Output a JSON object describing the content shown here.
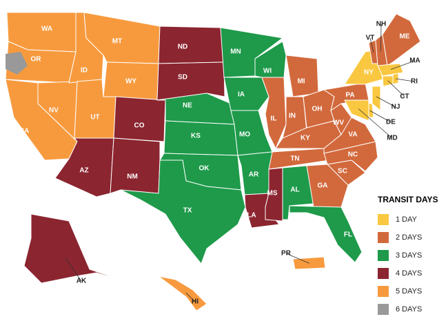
{
  "legend": {
    "title": "TRANSIT DAYS",
    "items": [
      {
        "label": "1 DAY",
        "color": "#f9c840"
      },
      {
        "label": "2 DAYS",
        "color": "#d2693c"
      },
      {
        "label": "3 DAYS",
        "color": "#1e9a4a"
      },
      {
        "label": "4 DAYS",
        "color": "#8b2530"
      },
      {
        "label": "5 DAYS",
        "color": "#f79a3e"
      },
      {
        "label": "6 DAYS",
        "color": "#999999"
      }
    ]
  },
  "states": [
    {
      "label": "WA",
      "color": "#f79a3e"
    },
    {
      "label": "OR",
      "color": "#f79a3e"
    },
    {
      "label": "CA",
      "color": "#f79a3e"
    },
    {
      "label": "NV",
      "color": "#f79a3e"
    },
    {
      "label": "ID",
      "color": "#f79a3e"
    },
    {
      "label": "MT",
      "color": "#f79a3e"
    },
    {
      "label": "WY",
      "color": "#f79a3e"
    },
    {
      "label": "UT",
      "color": "#f79a3e"
    },
    {
      "label": "AZ",
      "color": "#8b2530"
    },
    {
      "label": "CO",
      "color": "#8b2530"
    },
    {
      "label": "NM",
      "color": "#8b2530"
    },
    {
      "label": "ND",
      "color": "#8b2530"
    },
    {
      "label": "SD",
      "color": "#8b2530"
    },
    {
      "label": "NE",
      "color": "#1e9a4a"
    },
    {
      "label": "KS",
      "color": "#1e9a4a"
    },
    {
      "label": "OK",
      "color": "#1e9a4a"
    },
    {
      "label": "TX",
      "color": "#1e9a4a"
    },
    {
      "label": "MN",
      "color": "#1e9a4a"
    },
    {
      "label": "IA",
      "color": "#1e9a4a"
    },
    {
      "label": "MO",
      "color": "#1e9a4a"
    },
    {
      "label": "AR",
      "color": "#1e9a4a"
    },
    {
      "label": "LA",
      "color": "#8b2530"
    },
    {
      "label": "WI",
      "color": "#1e9a4a"
    },
    {
      "label": "IL",
      "color": "#d2693c"
    },
    {
      "label": "MS",
      "color": "#8b2530"
    },
    {
      "label": "MI",
      "color": "#d2693c"
    },
    {
      "label": "IN",
      "color": "#d2693c"
    },
    {
      "label": "OH",
      "color": "#d2693c"
    },
    {
      "label": "KY",
      "color": "#d2693c"
    },
    {
      "label": "TN",
      "color": "#d2693c"
    },
    {
      "label": "AL",
      "color": "#1e9a4a"
    },
    {
      "label": "GA",
      "color": "#d2693c"
    },
    {
      "label": "FL",
      "color": "#1e9a4a"
    },
    {
      "label": "SC",
      "color": "#d2693c"
    },
    {
      "label": "NC",
      "color": "#d2693c"
    },
    {
      "label": "VA",
      "color": "#d2693c"
    },
    {
      "label": "WV",
      "color": "#d2693c"
    },
    {
      "label": "PA",
      "color": "#d2693c"
    },
    {
      "label": "NY",
      "color": "#f9c840"
    },
    {
      "label": "VT",
      "color": "#d2693c"
    },
    {
      "label": "NH",
      "color": "#d2693c"
    },
    {
      "label": "ME",
      "color": "#d2693c"
    },
    {
      "label": "MA",
      "color": "#f9c840"
    },
    {
      "label": "RI",
      "color": "#f9c840"
    },
    {
      "label": "CT",
      "color": "#f9c840"
    },
    {
      "label": "NJ",
      "color": "#f9c840"
    },
    {
      "label": "DE",
      "color": "#f9c840"
    },
    {
      "label": "MD",
      "color": "#f9c840"
    },
    {
      "label": "AK",
      "color": "#8b2530"
    },
    {
      "label": "HI",
      "color": "#f79a3e"
    },
    {
      "label": "PR",
      "color": "#f79a3e"
    }
  ]
}
